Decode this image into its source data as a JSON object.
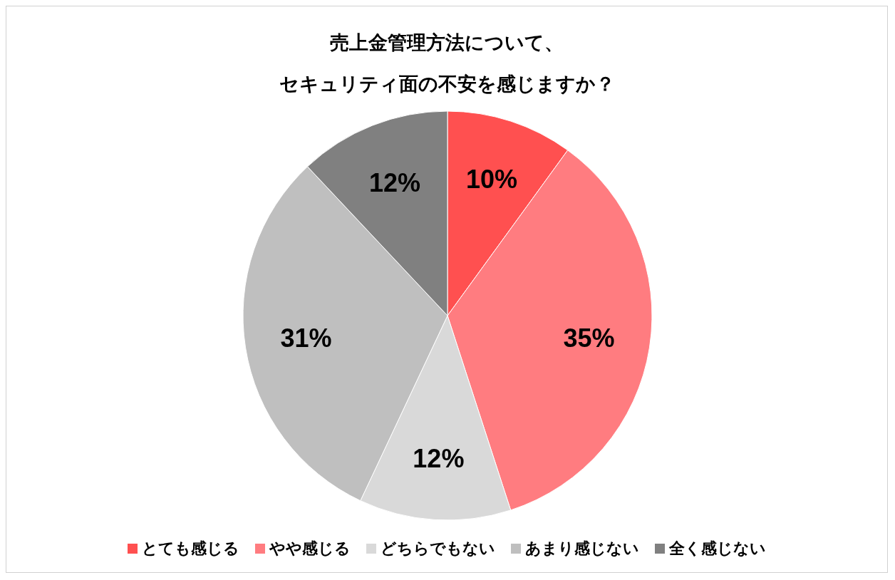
{
  "chart_data": {
    "type": "pie",
    "title": "売上金管理方法について、",
    "subtitle": "セキュリティ面の不安を感じますか？",
    "categories": [
      "とても感じる",
      "やや感じる",
      "どちらでもない",
      "あまり感じない",
      "全く感じない"
    ],
    "values": [
      10,
      35,
      12,
      31,
      12
    ],
    "value_labels": [
      "10%",
      "35%",
      "12%",
      "31%",
      "12%"
    ],
    "colors": [
      "#ff5050",
      "#ff7c80",
      "#d9d9d9",
      "#bfbfbf",
      "#808080"
    ],
    "legend": "bottom"
  }
}
